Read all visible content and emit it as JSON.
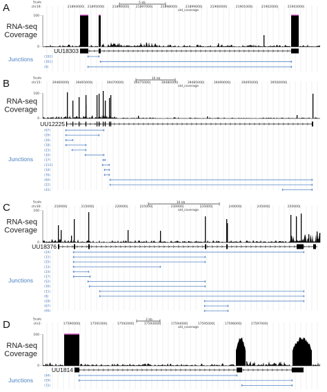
{
  "colors": {
    "junction": "#6b96cc",
    "junction_label": "#4a7fc1",
    "peak_cap": "#d04fbf",
    "grid": "#d7d7d7"
  },
  "common": {
    "scale_label": "Scale",
    "coverage_label_line1": "RNA-seq",
    "coverage_label_line2": "Coverage",
    "junctions_label": "Junctions",
    "track_name": "old_coverage",
    "ytick_top": "100 -",
    "ytick_bottom": "0 -"
  },
  "panels": [
    {
      "letter": "A",
      "scale_value": "5 kb",
      "chrom_label": "chr19:",
      "gene": "UU18303",
      "positions": [
        "21894000|",
        "21895000|",
        "21896000|",
        "21897000|",
        "21898000|",
        "21899000|",
        "21900000|",
        "21901000|",
        "21902000|",
        "21903000|"
      ],
      "junctions": [
        {
          "count": "(192)"
        },
        {
          "count": "(161)"
        },
        {
          "count": "(8)"
        }
      ]
    },
    {
      "letter": "B",
      "scale_value": "10 kb",
      "chrom_label": "chr15:",
      "gene": "UU12225",
      "positions": [
        "39460000|",
        "39465000|",
        "39470000|",
        "39475000|",
        "39480000|",
        "39485000|",
        "39490000|",
        "39495000|",
        "39500000|"
      ],
      "junctions": [
        {
          "count": "(67)"
        },
        {
          "count": "(26)"
        },
        {
          "count": "(26)"
        },
        {
          "count": "(18)"
        },
        {
          "count": "(23)"
        },
        {
          "count": "(10)"
        },
        {
          "count": "(17)"
        },
        {
          "count": "(115)"
        },
        {
          "count": "(34)"
        },
        {
          "count": "(76)"
        },
        {
          "count": "(60)"
        },
        {
          "count": "(22)"
        },
        {
          "count": "(42)"
        }
      ]
    },
    {
      "letter": "C",
      "scale_value": "10 kb",
      "chrom_label": "chr30:",
      "gene": "UU18376",
      "positions": [
        "210000|",
        "215000|",
        "220000|",
        "225000|",
        "230000|",
        "235000|",
        "240000|",
        "245000|",
        "250000|"
      ],
      "junctions": [
        {
          "count": "(24)"
        },
        {
          "count": "(11)"
        },
        {
          "count": "(25)"
        },
        {
          "count": "(13)"
        },
        {
          "count": "(24)"
        },
        {
          "count": "(17)"
        },
        {
          "count": "(52)"
        },
        {
          "count": "(30)"
        },
        {
          "count": "(11)"
        },
        {
          "count": "(8)"
        },
        {
          "count": "(28)"
        },
        {
          "count": "(67)"
        },
        {
          "count": "(66)"
        }
      ]
    },
    {
      "letter": "D",
      "scale_value": "2 kb",
      "chrom_label": "chr2:",
      "gene": "UU1814",
      "positions": [
        "17590000|",
        "17591000|",
        "17592000|",
        "17593000|",
        "17594000|",
        "17595000|",
        "17596000|",
        "17597000|"
      ],
      "junctions": [
        {
          "count": "(94)"
        },
        {
          "count": "(59)"
        },
        {
          "count": "(72)"
        }
      ]
    }
  ]
}
